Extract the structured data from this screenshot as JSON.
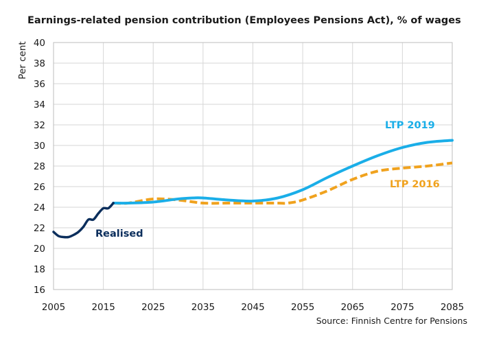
{
  "chart_data": {
    "type": "line",
    "title": "Earnings-related pension contribution (Employees Pensions Act), % of wages",
    "ylabel": "Per cent",
    "xlabel": "",
    "source": "Source: Finnish Centre for Pensions",
    "xlim": [
      2005,
      2085
    ],
    "ylim": [
      16,
      40
    ],
    "xticks": [
      "2005",
      "2015",
      "2025",
      "2035",
      "2045",
      "2055",
      "2065",
      "2075",
      "2085"
    ],
    "yticks": [
      "16",
      "18",
      "20",
      "22",
      "24",
      "26",
      "28",
      "30",
      "32",
      "34",
      "36",
      "38",
      "40"
    ],
    "grid": true,
    "series": [
      {
        "name": "Realised",
        "color": "#0b2e5c",
        "dashed": false,
        "x": [
          2005,
          2006,
          2007,
          2008,
          2009,
          2010,
          2011,
          2012,
          2013,
          2014,
          2015,
          2016,
          2017
        ],
        "y": [
          21.6,
          21.2,
          21.1,
          21.1,
          21.3,
          21.6,
          22.1,
          22.8,
          22.8,
          23.4,
          23.9,
          23.9,
          24.4
        ]
      },
      {
        "name": "LTP 2019",
        "color": "#1aaee8",
        "dashed": false,
        "x": [
          2017,
          2020,
          2025,
          2030,
          2033,
          2035,
          2040,
          2045,
          2050,
          2055,
          2060,
          2065,
          2070,
          2075,
          2080,
          2085
        ],
        "y": [
          24.4,
          24.4,
          24.5,
          24.8,
          24.9,
          24.9,
          24.7,
          24.6,
          24.9,
          25.7,
          26.9,
          28.0,
          29.0,
          29.8,
          30.3,
          30.5
        ]
      },
      {
        "name": "LTP 2016",
        "color": "#f0a21e",
        "dashed": true,
        "x": [
          2017,
          2020,
          2025,
          2030,
          2035,
          2040,
          2045,
          2050,
          2052,
          2055,
          2060,
          2065,
          2070,
          2075,
          2080,
          2085
        ],
        "y": [
          24.4,
          24.4,
          24.8,
          24.7,
          24.4,
          24.4,
          24.4,
          24.4,
          24.4,
          24.7,
          25.6,
          26.7,
          27.5,
          27.8,
          28.0,
          28.3
        ]
      }
    ]
  }
}
